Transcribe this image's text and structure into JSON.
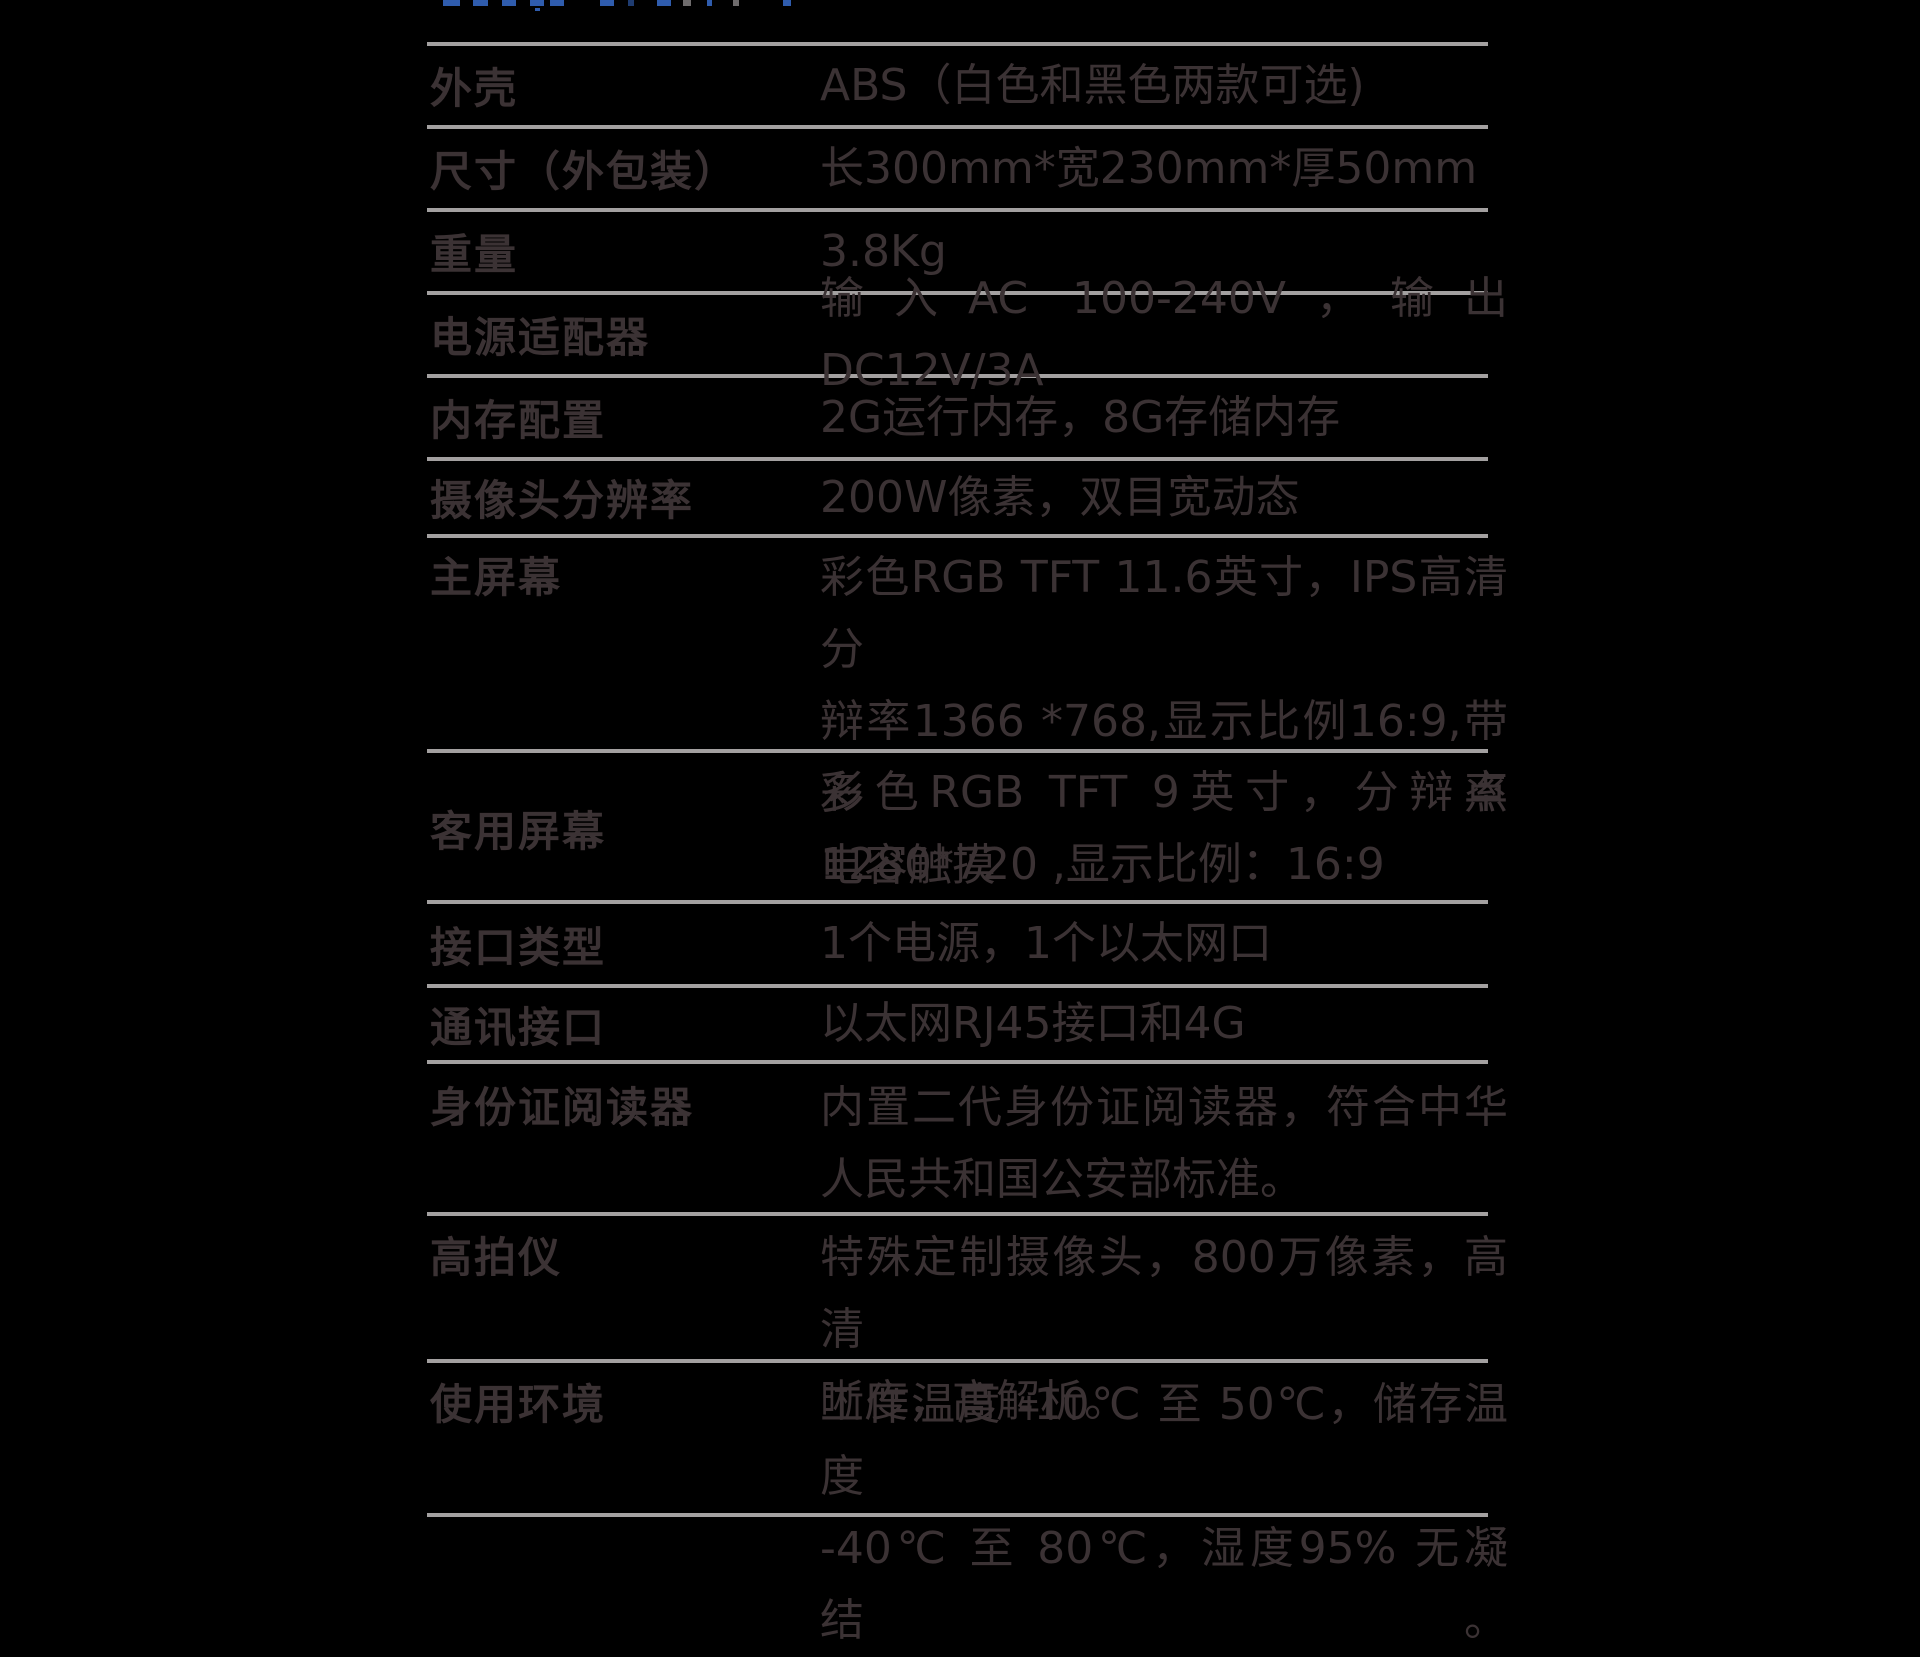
{
  "colors": {
    "page_background": "#000000",
    "text_color": "#3b3234",
    "divider_color": "#a3a0a0",
    "cropped_heading_blue": "#2f5cad"
  },
  "spec_table": {
    "rows": [
      {
        "label": "外壳",
        "value_lines": [
          "ABS（白色和黑色两款可选)"
        ]
      },
      {
        "label": "尺寸（外包装）",
        "value_lines": [
          "长300mm*宽230mm*厚50mm"
        ]
      },
      {
        "label": "重量",
        "value_lines": [
          "3.8Kg"
        ]
      },
      {
        "label": "电源适配器",
        "value_lines": [
          "输入AC 100-240V，输出DC12V/3A"
        ]
      },
      {
        "label": "内存配置",
        "value_lines": [
          "2G运行内存，8G存储内存"
        ]
      },
      {
        "label": "摄像头分辨率",
        "value_lines": [
          "200W像素，双目宽动态"
        ]
      },
      {
        "label": "主屏幕",
        "value_lines": [
          "彩色RGB TFT 11.6英寸，IPS高清分",
          "辩率1366 *768,显示比例16:9,带多点",
          "电容触摸"
        ]
      },
      {
        "label": "客用屏幕",
        "value_lines": [
          "彩色RGB TFT 9英寸，分辩率",
          "1280*720 ,显示比例：16:9"
        ]
      },
      {
        "label": "接口类型",
        "value_lines": [
          "1个电源，1个以太网口"
        ]
      },
      {
        "label": "通讯接口",
        "value_lines": [
          "以太网RJ45接口和4G"
        ]
      },
      {
        "label": "身份证阅读器",
        "value_lines": [
          "内置二代身份证阅读器，符合中华",
          "人民共和国公安部标准。"
        ]
      },
      {
        "label": "高拍仪",
        "value_lines": [
          "特殊定制摄像头，800万像素，高清",
          "晰度，高解析。"
        ]
      },
      {
        "label": "使用环境",
        "value_lines": [
          "工作温度 -10℃ 至 50℃，储存温度",
          "-40℃ 至 80℃，湿度95% 无凝结。"
        ]
      }
    ]
  }
}
